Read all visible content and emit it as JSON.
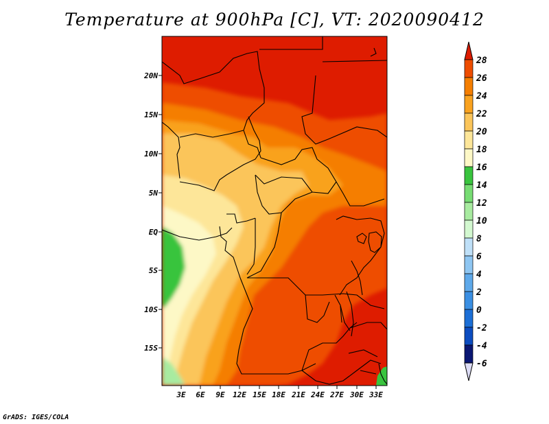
{
  "title": "Temperature at 900hPa [C], VT: 2020090412",
  "footer": "GrADS: IGES/COLA",
  "map": {
    "lon_range": [
      0,
      34.5
    ],
    "lat_range": [
      -19.5,
      24.5
    ],
    "lat_ticks": [
      "20N",
      "15N",
      "10N",
      "5N",
      "EQ",
      "5S",
      "10S",
      "15S"
    ],
    "lon_ticks": [
      "3E",
      "6E",
      "9E",
      "12E",
      "15E",
      "18E",
      "21E",
      "24E",
      "27E",
      "30E",
      "33E"
    ]
  },
  "colorbar": {
    "labels": [
      "28",
      "26",
      "24",
      "22",
      "20",
      "18",
      "16",
      "14",
      "12",
      "10",
      "8",
      "6",
      "4",
      "2",
      "0",
      "-2",
      "-4",
      "-6"
    ],
    "colors": [
      "#de1c00",
      "#ee4d00",
      "#f57e00",
      "#f9a21f",
      "#fbc55a",
      "#fde699",
      "#fdf8c6",
      "#39c43e",
      "#77dc73",
      "#a8eba0",
      "#d3f8d0",
      "#bfe0f8",
      "#8ec6f2",
      "#5ea9ea",
      "#3a8fe3",
      "#1c6fd6",
      "#0c4cc0",
      "#052a9a",
      "#0a1773",
      "#dcdcf5"
    ]
  }
}
